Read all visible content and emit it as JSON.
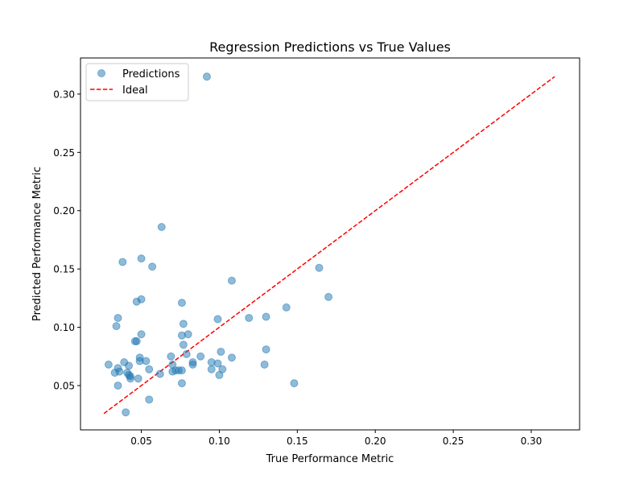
{
  "chart_data": {
    "type": "scatter",
    "title": "Regression Predictions vs True Values",
    "xlabel": "True Performance Metric",
    "ylabel": "Predicted Performance Metric",
    "xlim": [
      0.011,
      0.331
    ],
    "ylim": [
      0.012,
      0.331
    ],
    "xticks": [
      0.05,
      0.1,
      0.15,
      0.2,
      0.25,
      0.3
    ],
    "xtick_labels": [
      "0.05",
      "0.10",
      "0.15",
      "0.20",
      "0.25",
      "0.30"
    ],
    "yticks": [
      0.05,
      0.1,
      0.15,
      0.2,
      0.25,
      0.3
    ],
    "ytick_labels": [
      "0.05",
      "0.10",
      "0.15",
      "0.20",
      "0.25",
      "0.30"
    ],
    "grid": false,
    "legend": {
      "position": "top-left",
      "entries": [
        "Predictions",
        "Ideal"
      ]
    },
    "series": [
      {
        "name": "Predictions",
        "kind": "scatter",
        "color": "#1f77b4",
        "alpha": 0.5,
        "points": [
          [
            0.092,
            0.315
          ],
          [
            0.063,
            0.186
          ],
          [
            0.038,
            0.156
          ],
          [
            0.05,
            0.159
          ],
          [
            0.057,
            0.152
          ],
          [
            0.108,
            0.14
          ],
          [
            0.164,
            0.151
          ],
          [
            0.17,
            0.126
          ],
          [
            0.05,
            0.124
          ],
          [
            0.047,
            0.122
          ],
          [
            0.076,
            0.121
          ],
          [
            0.143,
            0.117
          ],
          [
            0.035,
            0.108
          ],
          [
            0.034,
            0.101
          ],
          [
            0.099,
            0.107
          ],
          [
            0.119,
            0.108
          ],
          [
            0.13,
            0.109
          ],
          [
            0.077,
            0.103
          ],
          [
            0.05,
            0.094
          ],
          [
            0.076,
            0.093
          ],
          [
            0.08,
            0.094
          ],
          [
            0.046,
            0.088
          ],
          [
            0.047,
            0.088
          ],
          [
            0.077,
            0.085
          ],
          [
            0.13,
            0.081
          ],
          [
            0.101,
            0.079
          ],
          [
            0.079,
            0.077
          ],
          [
            0.069,
            0.075
          ],
          [
            0.088,
            0.075
          ],
          [
            0.108,
            0.074
          ],
          [
            0.049,
            0.074
          ],
          [
            0.049,
            0.071
          ],
          [
            0.053,
            0.071
          ],
          [
            0.039,
            0.07
          ],
          [
            0.095,
            0.07
          ],
          [
            0.083,
            0.07
          ],
          [
            0.099,
            0.069
          ],
          [
            0.029,
            0.068
          ],
          [
            0.042,
            0.067
          ],
          [
            0.07,
            0.068
          ],
          [
            0.083,
            0.068
          ],
          [
            0.129,
            0.068
          ],
          [
            0.035,
            0.065
          ],
          [
            0.036,
            0.062
          ],
          [
            0.033,
            0.061
          ],
          [
            0.041,
            0.061
          ],
          [
            0.055,
            0.064
          ],
          [
            0.072,
            0.063
          ],
          [
            0.074,
            0.063
          ],
          [
            0.076,
            0.063
          ],
          [
            0.095,
            0.064
          ],
          [
            0.102,
            0.064
          ],
          [
            0.062,
            0.06
          ],
          [
            0.07,
            0.062
          ],
          [
            0.042,
            0.059
          ],
          [
            0.043,
            0.058
          ],
          [
            0.043,
            0.056
          ],
          [
            0.048,
            0.056
          ],
          [
            0.1,
            0.059
          ],
          [
            0.035,
            0.05
          ],
          [
            0.076,
            0.052
          ],
          [
            0.148,
            0.052
          ],
          [
            0.055,
            0.038
          ],
          [
            0.04,
            0.027
          ]
        ]
      },
      {
        "name": "Ideal",
        "kind": "line",
        "color": "#ff0000",
        "dash": "dashed",
        "points": [
          [
            0.026,
            0.026
          ],
          [
            0.315,
            0.315
          ]
        ]
      }
    ]
  }
}
